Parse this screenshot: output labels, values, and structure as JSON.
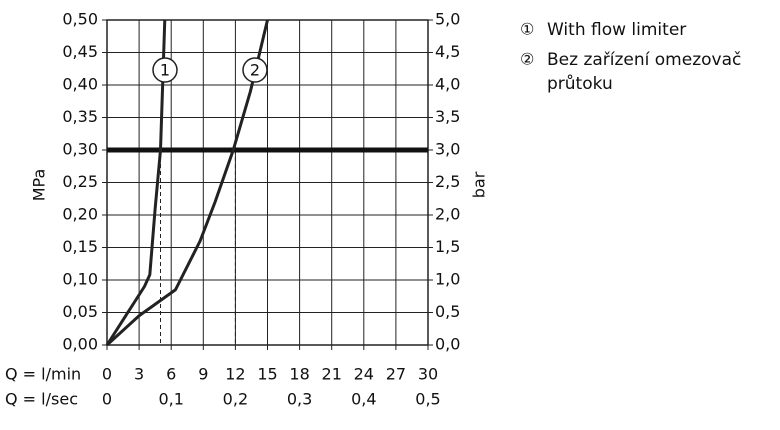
{
  "chart_data": {
    "type": "line",
    "x_label": "Q = l/min",
    "x2_label": "Q = l/sec",
    "y_label": "MPa",
    "y2_label": "bar",
    "xlim": [
      0,
      30
    ],
    "xticks": [
      0,
      3,
      6,
      9,
      12,
      15,
      18,
      21,
      24,
      27,
      30
    ],
    "x2lim": [
      0,
      0.5
    ],
    "x2ticks": [
      0,
      {
        "value": 0.1,
        "label": "0,1"
      },
      {
        "value": 0.2,
        "label": "0,2"
      },
      {
        "value": 0.3,
        "label": "0,3"
      },
      {
        "value": 0.4,
        "label": "0,4"
      },
      {
        "value": 0.5,
        "label": "0,5"
      }
    ],
    "ylim": [
      0,
      0.5
    ],
    "yticks": [
      {
        "value": 0,
        "label": "0,00"
      },
      {
        "value": 0.05,
        "label": "0,05"
      },
      {
        "value": 0.1,
        "label": "0,10"
      },
      {
        "value": 0.15,
        "label": "0,15"
      },
      {
        "value": 0.2,
        "label": "0,20"
      },
      {
        "value": 0.25,
        "label": "0,25"
      },
      {
        "value": 0.3,
        "label": "0,30"
      },
      {
        "value": 0.35,
        "label": "0,35"
      },
      {
        "value": 0.4,
        "label": "0,40"
      },
      {
        "value": 0.45,
        "label": "0,45"
      },
      {
        "value": 0.5,
        "label": "0,50"
      }
    ],
    "y2lim": [
      0,
      5
    ],
    "y2ticks": [
      {
        "value": 0,
        "label": "0,0"
      },
      {
        "value": 0.5,
        "label": "0,5"
      },
      {
        "value": 1,
        "label": "1,0"
      },
      {
        "value": 1.5,
        "label": "1,5"
      },
      {
        "value": 2,
        "label": "2,0"
      },
      {
        "value": 2.5,
        "label": "2,5"
      },
      {
        "value": 3,
        "label": "3,0"
      },
      {
        "value": 3.5,
        "label": "3,5"
      },
      {
        "value": 4,
        "label": "4,0"
      },
      {
        "value": 4.5,
        "label": "4,5"
      },
      {
        "value": 5,
        "label": "5,0"
      }
    ],
    "grid": true,
    "reference_y": 0.3,
    "dashed_x": [
      5,
      12
    ],
    "series": [
      {
        "name": "With flow limiter",
        "marker": "①",
        "label": "1",
        "color": "#222222",
        "x": [
          0,
          3.5,
          4.0,
          4.5,
          5.0,
          5.4
        ],
        "values": [
          0,
          0.09,
          0.108,
          0.21,
          0.3,
          0.5
        ]
      },
      {
        "name": "Bez zařízení omezovač průtoku",
        "marker": "②",
        "label": "2",
        "color": "#222222",
        "x": [
          0,
          3,
          6.4,
          8.7,
          10.1,
          11.8,
          13.4,
          15
        ],
        "values": [
          0,
          0.045,
          0.085,
          0.16,
          0.22,
          0.3,
          0.39,
          0.5
        ]
      }
    ]
  }
}
